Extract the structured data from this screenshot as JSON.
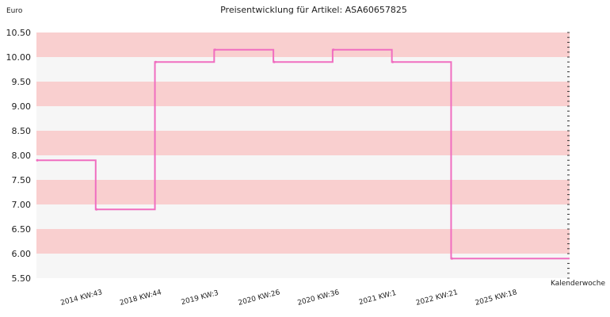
{
  "chart_data": {
    "type": "line",
    "step": "post",
    "title": "Preisentwicklung für Artikel: ASA60657825",
    "ylabel": "Euro",
    "xlabel": "Kalenderwoche",
    "ylim": [
      5.5,
      10.5
    ],
    "yticks": [
      "5.50",
      "6.00",
      "6.50",
      "7.00",
      "7.50",
      "8.00",
      "8.50",
      "9.00",
      "9.50",
      "10.00",
      "10.50"
    ],
    "categories": [
      "2014 KW:43",
      "2018 KW:44",
      "2019 KW:3",
      "2020 KW:26",
      "2020 KW:36",
      "2021 KW:1",
      "2022 KW:21",
      "2025 KW:18"
    ],
    "series": [
      {
        "values": [
          7.9,
          6.9,
          9.9,
          10.15,
          9.9,
          10.15,
          9.9,
          5.9
        ]
      }
    ],
    "band_colors": [
      "#f9cfcf",
      "#f6f6f6"
    ],
    "line_color": "#f06ec0",
    "grid": false,
    "legend": "none"
  }
}
